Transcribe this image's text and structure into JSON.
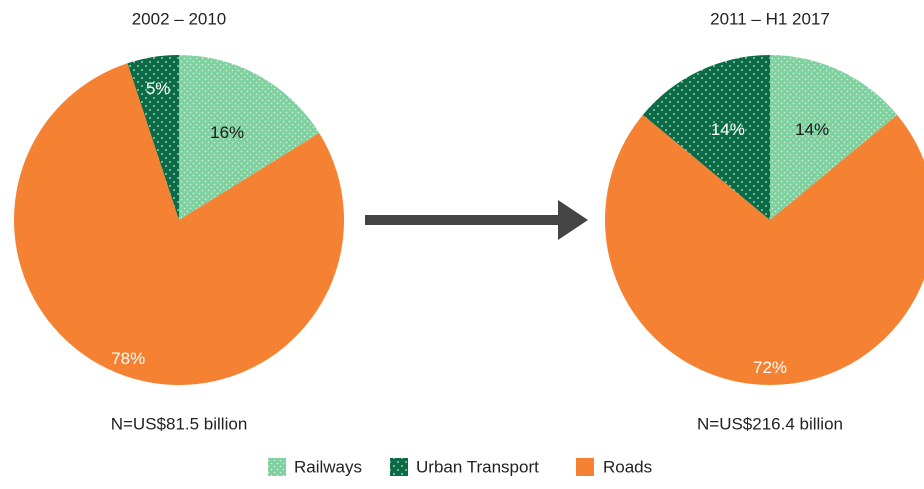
{
  "chart_data": [
    {
      "type": "pie",
      "title": "2002 – 2010",
      "note": "N=US$81.5 billion",
      "categories": [
        "Railways",
        "Roads",
        "Urban Transport"
      ],
      "values": [
        16,
        78,
        5
      ],
      "value_labels": [
        "16%",
        "78%",
        "5%"
      ],
      "colors": [
        "#7fcf9f",
        "#f58232",
        "#0b6b46"
      ]
    },
    {
      "type": "pie",
      "title": "2011 – H1 2017",
      "note": "N=US$216.4 billion",
      "categories": [
        "Railways",
        "Roads",
        "Urban Transport"
      ],
      "values": [
        14,
        72,
        14
      ],
      "value_labels": [
        "14%",
        "72%",
        "14%"
      ],
      "colors": [
        "#7fcf9f",
        "#f58232",
        "#0b6b46"
      ]
    }
  ]
}
